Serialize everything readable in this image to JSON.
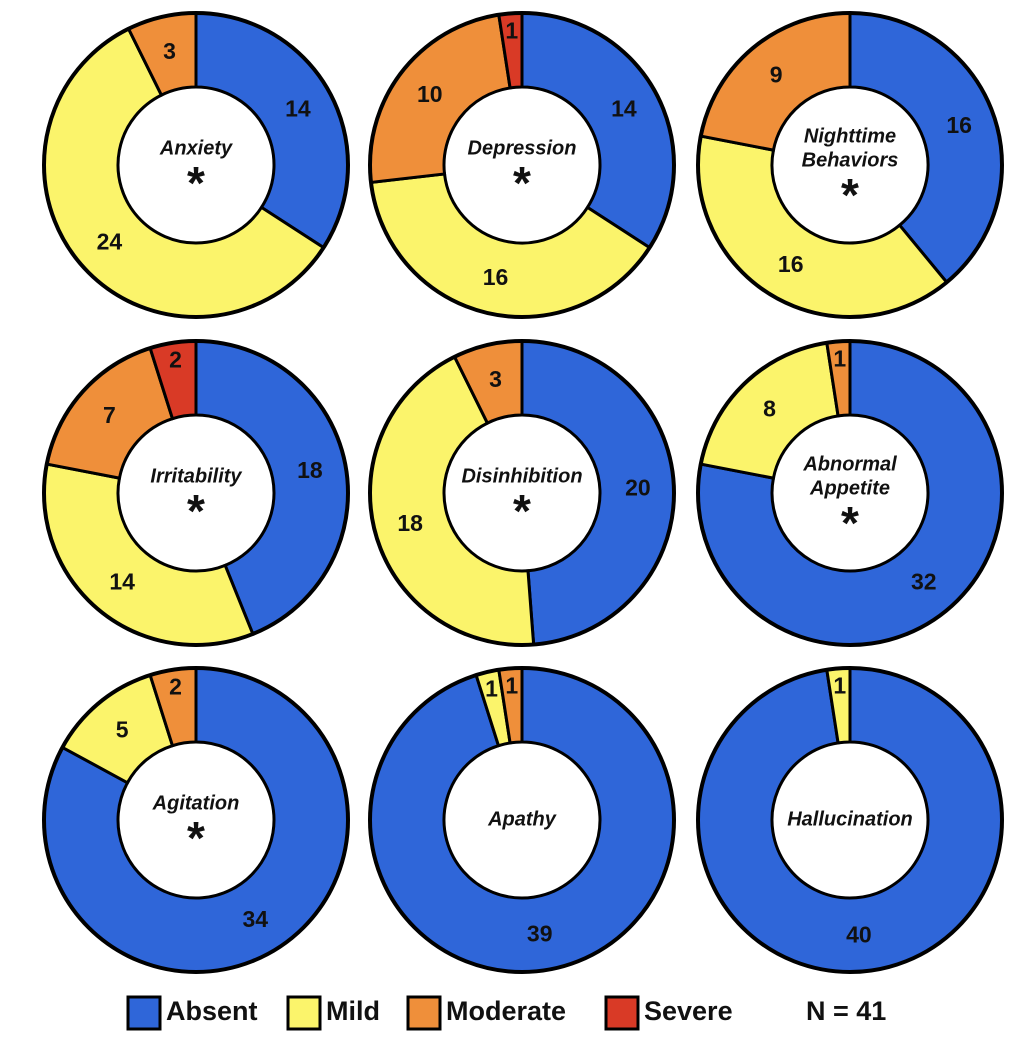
{
  "legend": [
    {
      "name": "Absent",
      "color": "#2f66d9"
    },
    {
      "name": "Mild",
      "color": "#fbf46b"
    },
    {
      "name": "Moderate",
      "color": "#ef8f3a"
    },
    {
      "name": "Severe",
      "color": "#d93a26"
    }
  ],
  "note": "N = 41",
  "chart_data": [
    {
      "type": "donut",
      "title": [
        "Anxiety"
      ],
      "annotation": "*",
      "categories": [
        "Absent",
        "Mild",
        "Moderate"
      ],
      "values": [
        14,
        24,
        3
      ]
    },
    {
      "type": "donut",
      "title": [
        "Depression"
      ],
      "annotation": "*",
      "categories": [
        "Absent",
        "Mild",
        "Moderate",
        "Severe"
      ],
      "values": [
        14,
        16,
        10,
        1
      ]
    },
    {
      "type": "donut",
      "title": [
        "Nighttime",
        "Behaviors"
      ],
      "annotation": "*",
      "categories": [
        "Absent",
        "Mild",
        "Moderate"
      ],
      "values": [
        16,
        16,
        9
      ]
    },
    {
      "type": "donut",
      "title": [
        "Irritability"
      ],
      "annotation": "*",
      "categories": [
        "Absent",
        "Mild",
        "Moderate",
        "Severe"
      ],
      "values": [
        18,
        14,
        7,
        2
      ]
    },
    {
      "type": "donut",
      "title": [
        "Disinhibition"
      ],
      "annotation": "*",
      "categories": [
        "Absent",
        "Mild",
        "Moderate"
      ],
      "values": [
        20,
        18,
        3
      ]
    },
    {
      "type": "donut",
      "title": [
        "Abnormal",
        "Appetite"
      ],
      "annotation": "*",
      "categories": [
        "Absent",
        "Mild",
        "Moderate"
      ],
      "values": [
        32,
        8,
        1
      ]
    },
    {
      "type": "donut",
      "title": [
        "Agitation"
      ],
      "annotation": "*",
      "categories": [
        "Absent",
        "Mild",
        "Moderate"
      ],
      "values": [
        34,
        5,
        2
      ]
    },
    {
      "type": "donut",
      "title": [
        "Apathy"
      ],
      "categories": [
        "Absent",
        "Mild",
        "Moderate"
      ],
      "values": [
        39,
        1,
        1
      ]
    },
    {
      "type": "donut",
      "title": [
        "Hallucination"
      ],
      "categories": [
        "Absent",
        "Mild"
      ],
      "values": [
        40,
        1
      ]
    }
  ]
}
